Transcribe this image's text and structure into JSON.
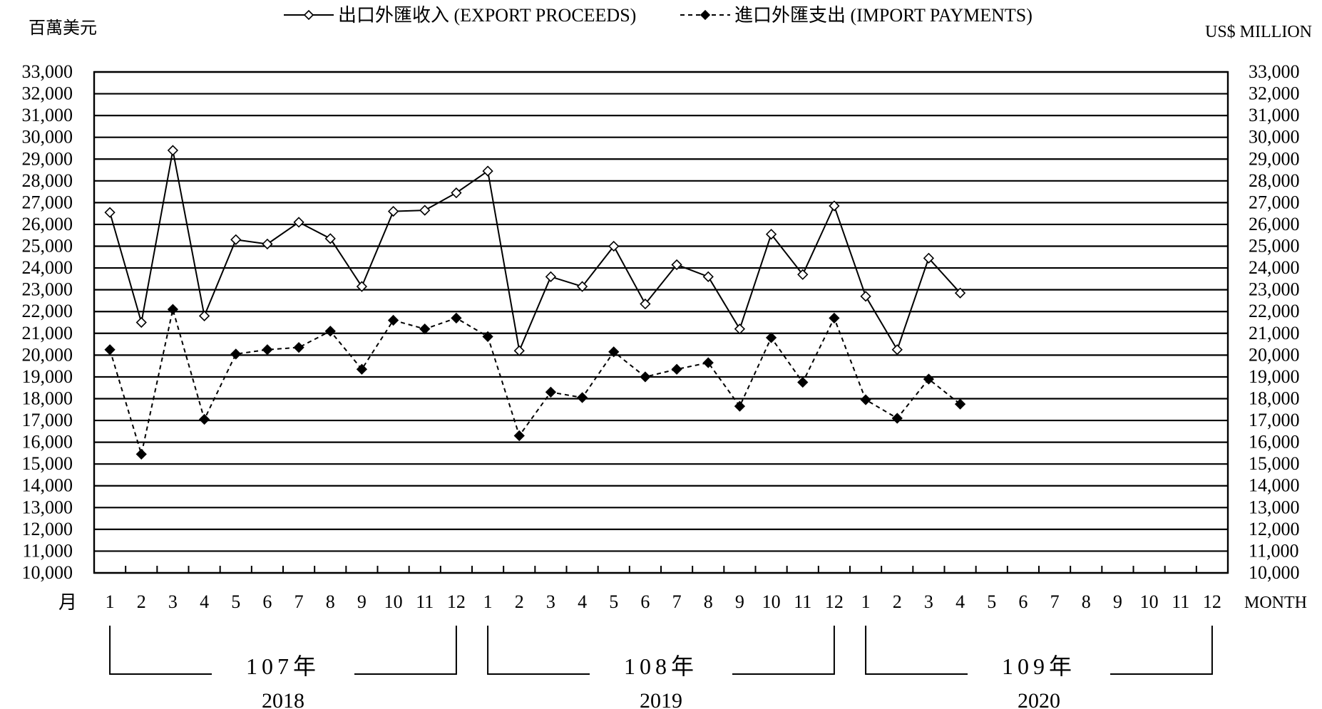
{
  "chart_data": {
    "type": "line",
    "legend": {
      "placement": "top-center",
      "entries": [
        "出口外匯收入 (EXPORT PROCEEDS)",
        "進口外匯支出 (IMPORT PAYMENTS)"
      ]
    },
    "left_unit": "百萬美元",
    "right_unit": "US$ MILLION",
    "x_axis_label_left": "月",
    "x_axis_label_right": "MONTH",
    "ylim": [
      10000,
      33000
    ],
    "y_ticks": [
      "10,000",
      "11,000",
      "12,000",
      "13,000",
      "14,000",
      "15,000",
      "16,000",
      "17,000",
      "18,000",
      "19,000",
      "20,000",
      "21,000",
      "22,000",
      "23,000",
      "24,000",
      "25,000",
      "26,000",
      "27,000",
      "28,000",
      "29,000",
      "30,000",
      "31,000",
      "32,000",
      "33,000"
    ],
    "grid": true,
    "months": [
      "1",
      "2",
      "3",
      "4",
      "5",
      "6",
      "7",
      "8",
      "9",
      "10",
      "11",
      "12",
      "1",
      "2",
      "3",
      "4",
      "5",
      "6",
      "7",
      "8",
      "9",
      "10",
      "11",
      "12",
      "1",
      "2",
      "3",
      "4",
      "5",
      "6",
      "7",
      "8",
      "9",
      "10",
      "11",
      "12"
    ],
    "year_groups": [
      {
        "roc": "107年",
        "year": "2018"
      },
      {
        "roc": "108年",
        "year": "2019"
      },
      {
        "roc": "109年",
        "year": "2020"
      }
    ],
    "series": [
      {
        "name": "出口外匯收入 (EXPORT PROCEEDS)",
        "marker": "open-diamond",
        "line_style": "solid",
        "values": [
          26550,
          21500,
          29400,
          21800,
          25300,
          25100,
          26100,
          25350,
          23150,
          26600,
          26650,
          27450,
          28450,
          20200,
          23600,
          23150,
          25000,
          22350,
          24150,
          23600,
          21200,
          25550,
          23700,
          26850,
          22700,
          20250,
          24450,
          22850
        ]
      },
      {
        "name": "進口外匯支出 (IMPORT PAYMENTS)",
        "marker": "filled-diamond",
        "line_style": "dashed",
        "values": [
          20250,
          15450,
          22100,
          17050,
          20050,
          20250,
          20350,
          21100,
          19350,
          21600,
          21200,
          21700,
          20850,
          16300,
          18300,
          18050,
          20150,
          19000,
          19350,
          19650,
          17650,
          20800,
          18750,
          21700,
          17950,
          17100,
          18900,
          17750
        ]
      }
    ]
  }
}
